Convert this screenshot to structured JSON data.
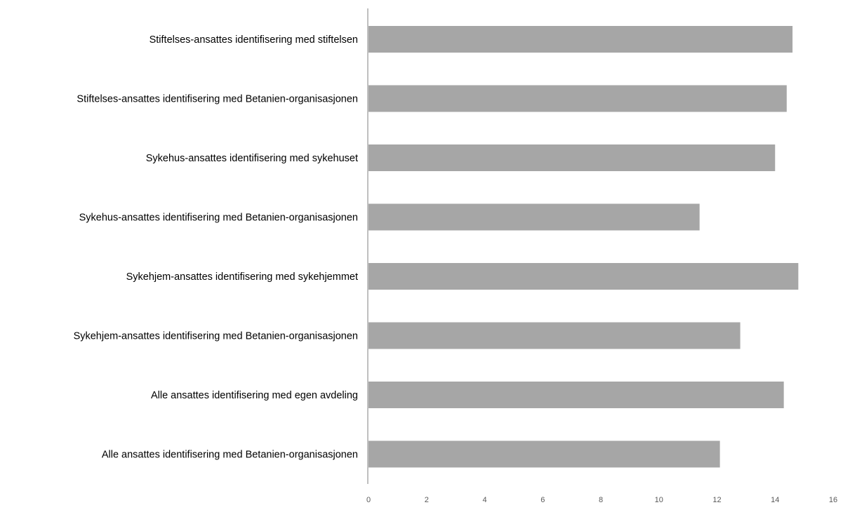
{
  "chart_data": {
    "type": "bar",
    "orientation": "horizontal",
    "categories": [
      "Stiftelses-ansattes identifisering med stiftelsen",
      "Stiftelses-ansattes identifisering med Betanien-organisasjonen",
      "Sykehus-ansattes identifisering med sykehuset",
      "Sykehus-ansattes identifisering med Betanien-organisasjonen",
      "Sykehjem-ansattes identifisering med sykehjemmet",
      "Sykehjem-ansattes identifisering med Betanien-organisasjonen",
      "Alle ansattes identifisering med egen avdeling",
      "Alle ansattes identifisering med Betanien-organisasjonen"
    ],
    "values": [
      14.6,
      14.4,
      14.0,
      11.4,
      14.8,
      12.8,
      14.3,
      12.1
    ],
    "xlim": [
      0,
      16
    ],
    "xticks": [
      "0",
      "2",
      "4",
      "6",
      "8",
      "10",
      "12",
      "14",
      "16"
    ],
    "title": "",
    "xlabel": "",
    "ylabel": "",
    "grid": false,
    "legend": "none",
    "bar_color": "#a6a6a6",
    "axis_color": "#bfbfbf"
  }
}
